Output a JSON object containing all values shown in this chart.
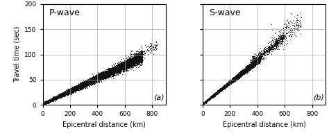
{
  "title": "",
  "xlabel": "Epicentral distance (km)",
  "ylabel": "Travel time (sec)",
  "xlim": [
    0,
    900
  ],
  "ylim": [
    0,
    200
  ],
  "xticks": [
    0,
    200,
    400,
    600,
    800
  ],
  "yticks": [
    0,
    50,
    100,
    150,
    200
  ],
  "label_a": "P-wave",
  "label_b": "S-wave",
  "annot_a": "(a)",
  "annot_b": "(b)",
  "p_slope": 0.128,
  "p_intercept": 2.0,
  "p_scatter_base": 1.0,
  "p_scatter_grow": 0.006,
  "p_n_dense": 15000,
  "p_x_dense_max": 730,
  "p_n_sparse": 200,
  "p_x_sparse_min": 600,
  "p_x_sparse_max": 840,
  "p_scatter_sparse": 6.0,
  "s_slope": 0.215,
  "s_intercept": 2.0,
  "s_scatter_base": 0.8,
  "s_scatter_grow": 0.005,
  "s_n_dense": 12000,
  "s_x_dense_max": 420,
  "s_n_mid": 800,
  "s_x_mid_min": 350,
  "s_x_mid_max": 600,
  "s_scatter_mid": 5.0,
  "s_n_sparse": 200,
  "s_x_sparse_min": 500,
  "s_x_sparse_max": 720,
  "s_scatter_sparse": 12.0,
  "dot_color": "#111111",
  "dot_size": 0.5,
  "background_color": "#ffffff",
  "grid_color": "#aaaaaa",
  "figsize": [
    4.74,
    1.99
  ],
  "dpi": 100
}
